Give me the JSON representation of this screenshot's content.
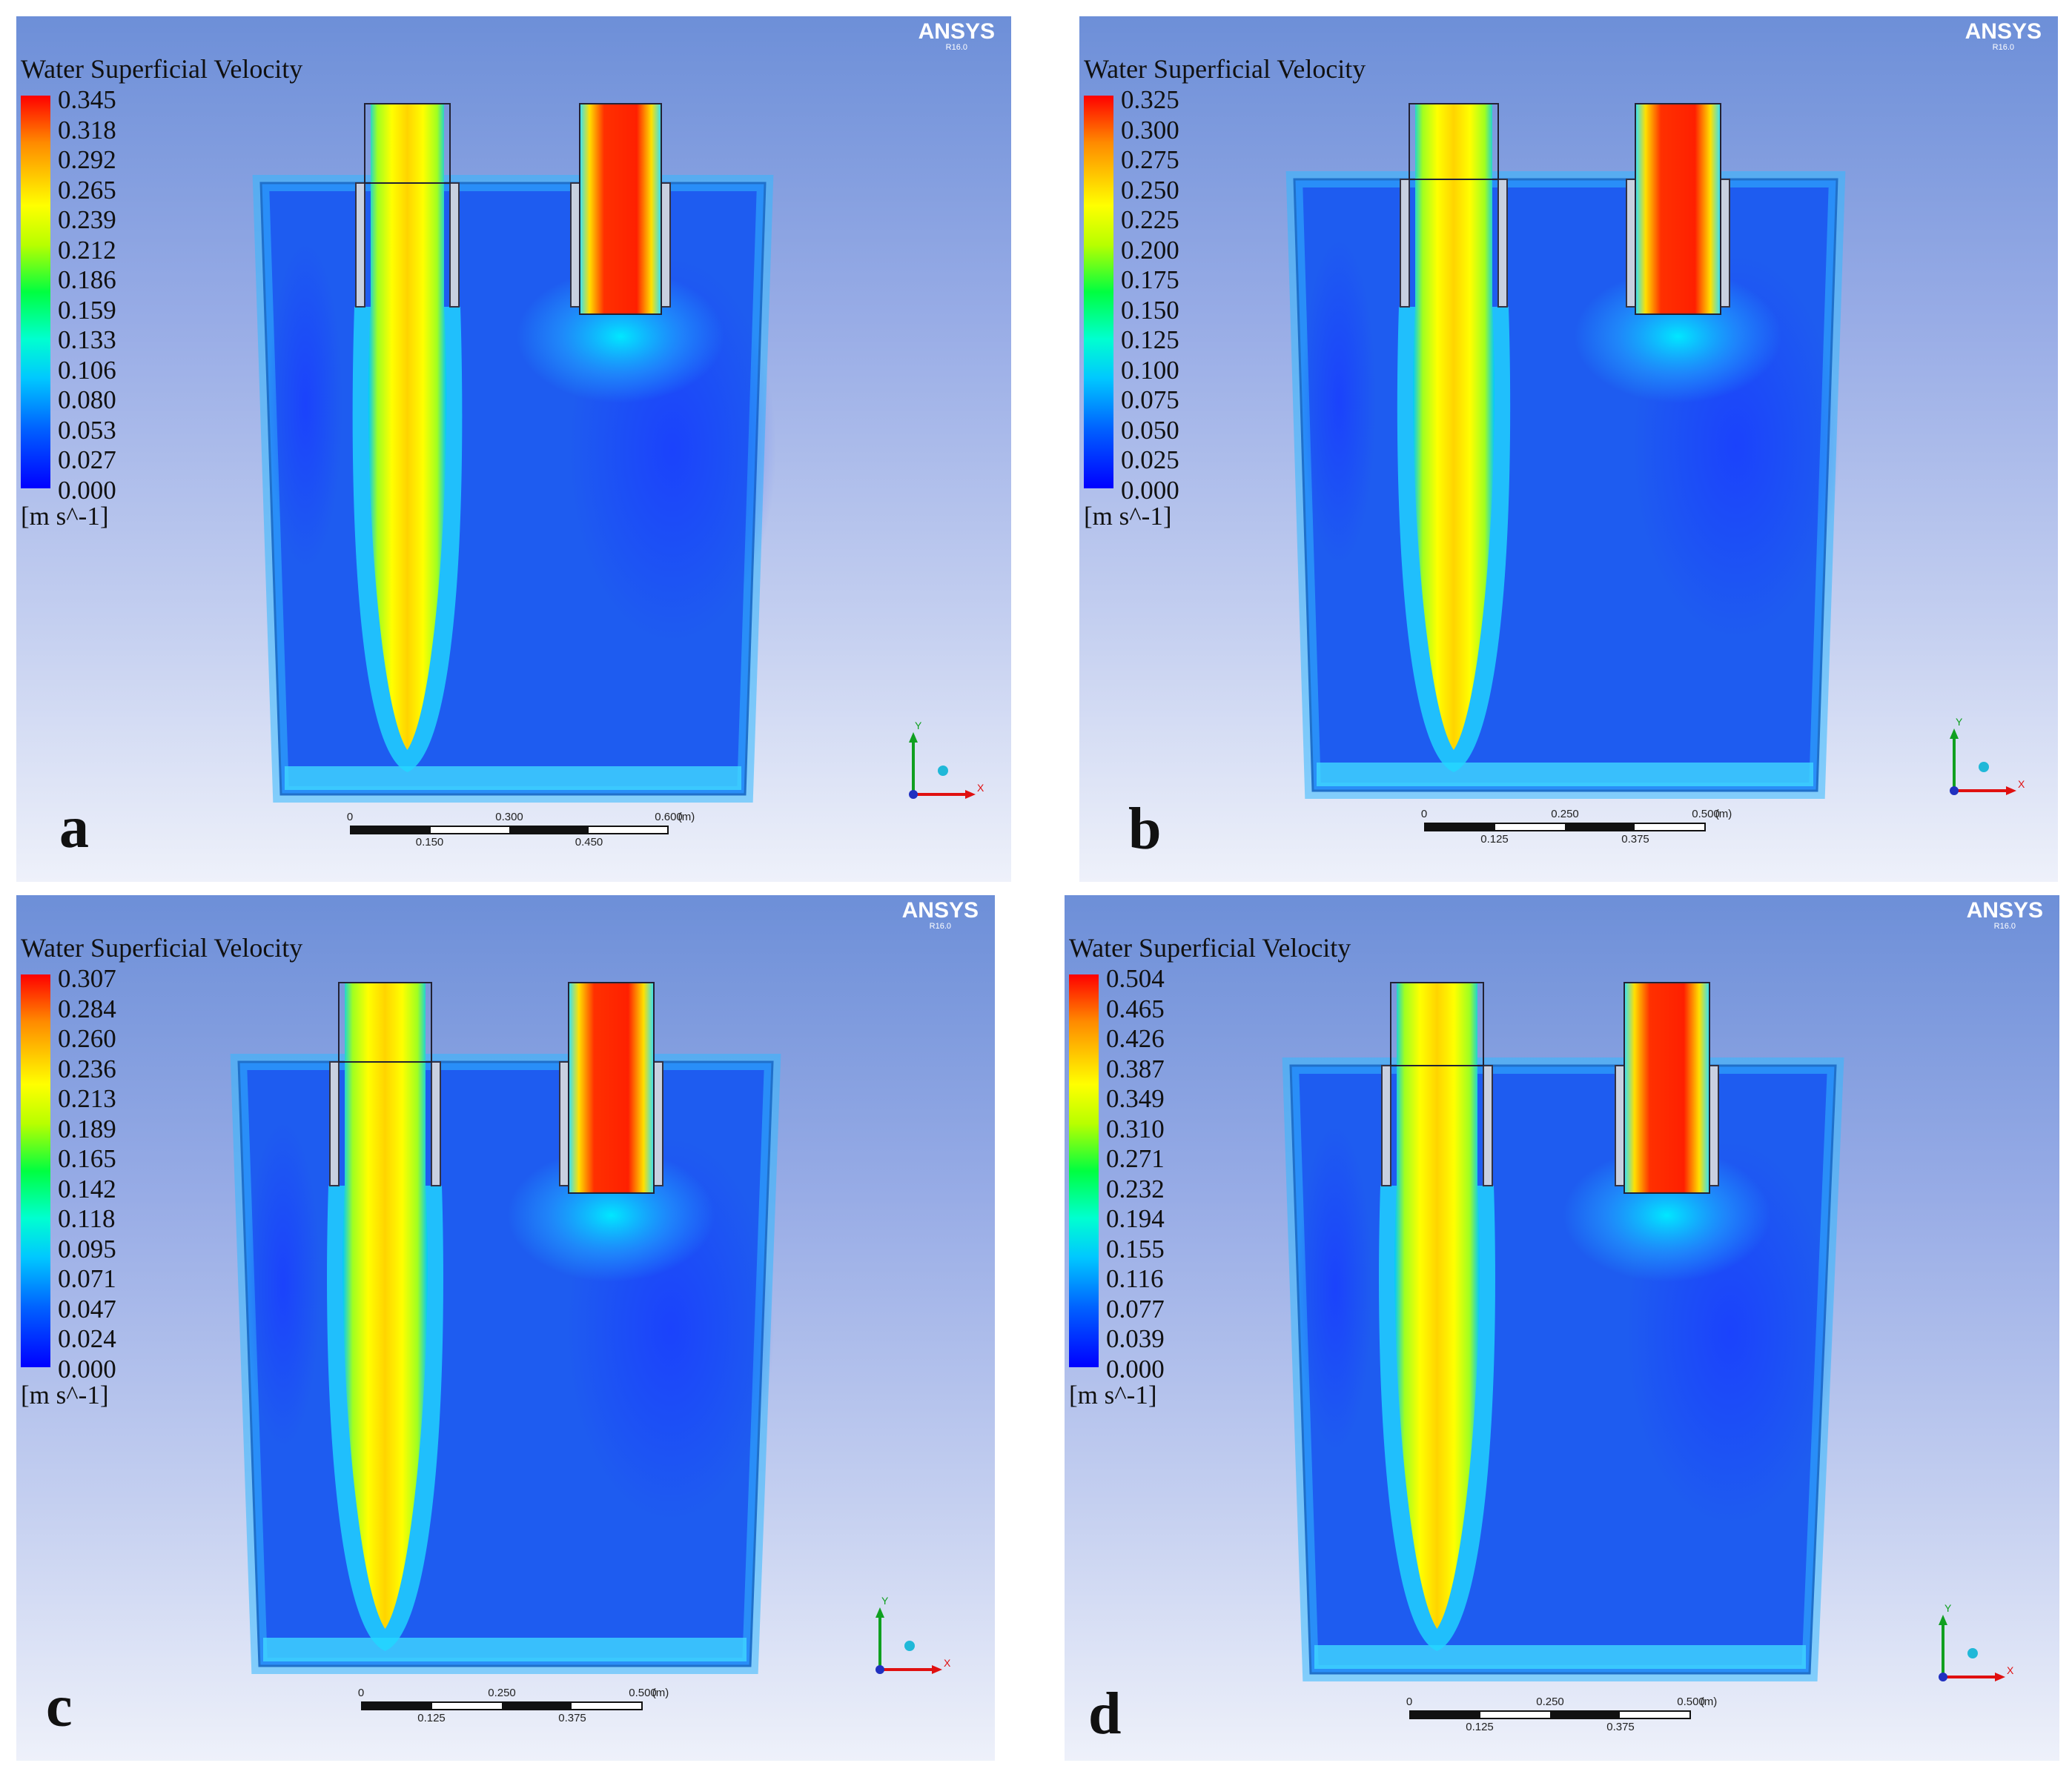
{
  "panels": [
    {
      "label": "a",
      "brand": "ANSYS",
      "version": "R16.0",
      "legend_title": "Water Superficial Velocity",
      "legend_values": [
        "0.345",
        "0.318",
        "0.292",
        "0.265",
        "0.239",
        "0.212",
        "0.186",
        "0.159",
        "0.133",
        "0.106",
        "0.080",
        "0.053",
        "0.027",
        "0.000"
      ],
      "legend_unit": "[m s^-1]",
      "scale_top": [
        "0",
        "0.300",
        "0.600"
      ],
      "scale_unit": "(m)",
      "scale_bottom": [
        "0.150",
        "0.450"
      ],
      "axes": {
        "y": "Y",
        "x": "X"
      }
    },
    {
      "label": "b",
      "brand": "ANSYS",
      "version": "R16.0",
      "legend_title": "Water Superficial Velocity",
      "legend_values": [
        "0.325",
        "0.300",
        "0.275",
        "0.250",
        "0.225",
        "0.200",
        "0.175",
        "0.150",
        "0.125",
        "0.100",
        "0.075",
        "0.050",
        "0.025",
        "0.000"
      ],
      "legend_unit": "[m s^-1]",
      "scale_top": [
        "0",
        "0.250",
        "0.500"
      ],
      "scale_unit": "(m)",
      "scale_bottom": [
        "0.125",
        "0.375"
      ],
      "axes": {
        "y": "Y",
        "x": "X"
      }
    },
    {
      "label": "c",
      "brand": "ANSYS",
      "version": "R16.0",
      "legend_title": "Water Superficial Velocity",
      "legend_values": [
        "0.307",
        "0.284",
        "0.260",
        "0.236",
        "0.213",
        "0.189",
        "0.165",
        "0.142",
        "0.118",
        "0.095",
        "0.071",
        "0.047",
        "0.024",
        "0.000"
      ],
      "legend_unit": "[m s^-1]",
      "scale_top": [
        "0",
        "0.250",
        "0.500"
      ],
      "scale_unit": "(m)",
      "scale_bottom": [
        "0.125",
        "0.375"
      ],
      "axes": {
        "y": "Y",
        "x": "X"
      }
    },
    {
      "label": "d",
      "brand": "ANSYS",
      "version": "R16.0",
      "legend_title": "Water Superficial Velocity",
      "legend_values": [
        "0.504",
        "0.465",
        "0.426",
        "0.387",
        "0.349",
        "0.310",
        "0.271",
        "0.232",
        "0.194",
        "0.155",
        "0.116",
        "0.077",
        "0.039",
        "0.000"
      ],
      "legend_unit": "[m s^-1]",
      "scale_top": [
        "0",
        "0.250",
        "0.500"
      ],
      "scale_unit": "(m)",
      "scale_bottom": [
        "0.125",
        "0.375"
      ],
      "axes": {
        "y": "Y",
        "x": "X"
      }
    }
  ]
}
